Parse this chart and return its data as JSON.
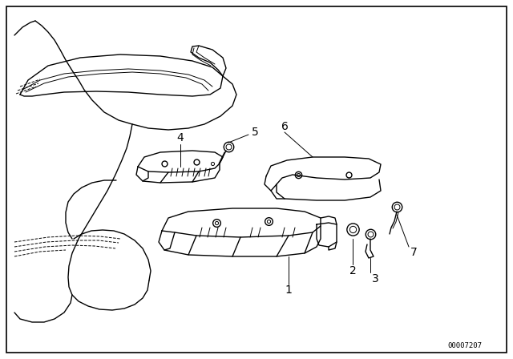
{
  "background_color": "#ffffff",
  "border_color": "#000000",
  "diagram_id": "00007207",
  "fig_width": 6.4,
  "fig_height": 4.48,
  "dpi": 100
}
